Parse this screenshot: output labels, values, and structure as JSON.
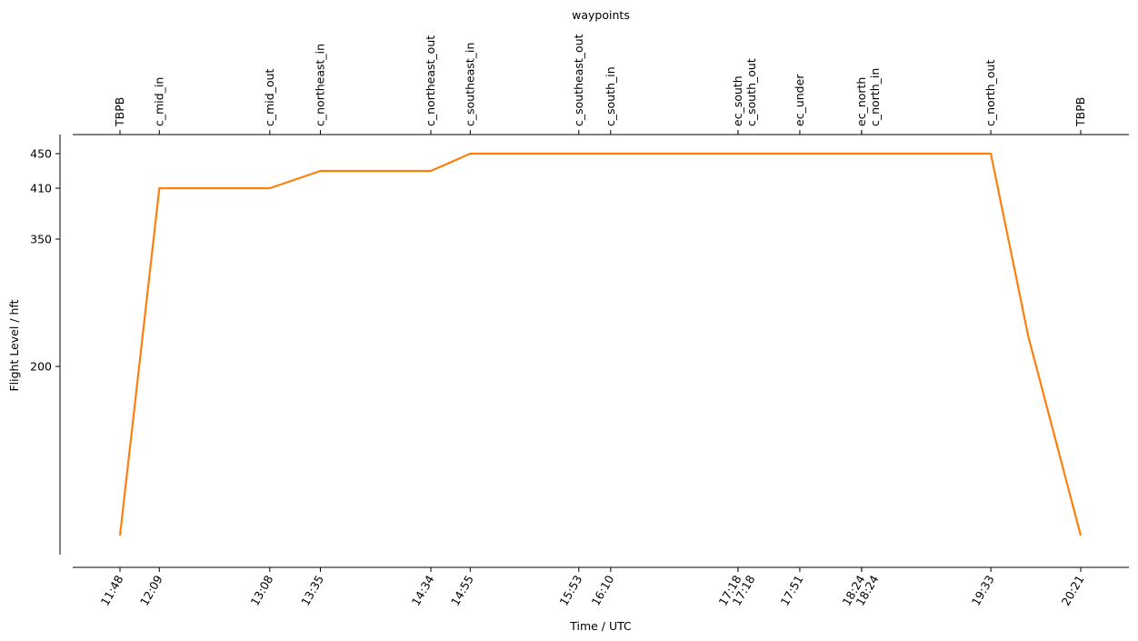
{
  "chart_data": {
    "type": "line",
    "title": "",
    "xlabel": "Time / UTC",
    "ylabel": "Flight Level / hft",
    "top_axis_label": "waypoints",
    "y_scale": "pressure (nonlinear)",
    "y_ticks": [
      200,
      350,
      410,
      450
    ],
    "x_ticks": [
      "11:48",
      "12:09",
      "13:08",
      "13:35",
      "14:34",
      "14:55",
      "15:53",
      "16:10",
      "17:18",
      "17:18",
      "17:51",
      "18:24",
      "18:24",
      "19:33",
      "20:21"
    ],
    "waypoints": [
      {
        "name": "TBPB",
        "time": "11:48"
      },
      {
        "name": "c_mid_in",
        "time": "12:09"
      },
      {
        "name": "c_mid_out",
        "time": "13:08"
      },
      {
        "name": "c_northeast_in",
        "time": "13:35"
      },
      {
        "name": "c_northeast_out",
        "time": "14:34"
      },
      {
        "name": "c_southeast_in",
        "time": "14:55"
      },
      {
        "name": "c_southeast_out",
        "time": "15:53"
      },
      {
        "name": "c_south_in",
        "time": "16:10"
      },
      {
        "name": "ec_south",
        "time": "17:18"
      },
      {
        "name": "c_south_out",
        "time": "17:18"
      },
      {
        "name": "ec_under",
        "time": "17:51"
      },
      {
        "name": "ec_north",
        "time": "18:24"
      },
      {
        "name": "c_north_in",
        "time": "18:24"
      },
      {
        "name": "c_north_out",
        "time": "19:33"
      },
      {
        "name": "TBPB",
        "time": "20:21"
      }
    ],
    "series": [
      {
        "color": "#ff7f0e",
        "x": [
          "11:48",
          "12:09",
          "13:08",
          "13:35",
          "14:34",
          "14:55",
          "15:53",
          "16:10",
          "17:18",
          "17:51",
          "18:24",
          "19:33",
          "19:53",
          "20:21"
        ],
        "y": [
          0,
          410,
          410,
          430,
          430,
          450,
          450,
          450,
          450,
          450,
          450,
          450,
          240,
          0
        ]
      }
    ],
    "grid": false,
    "legend": "none"
  }
}
